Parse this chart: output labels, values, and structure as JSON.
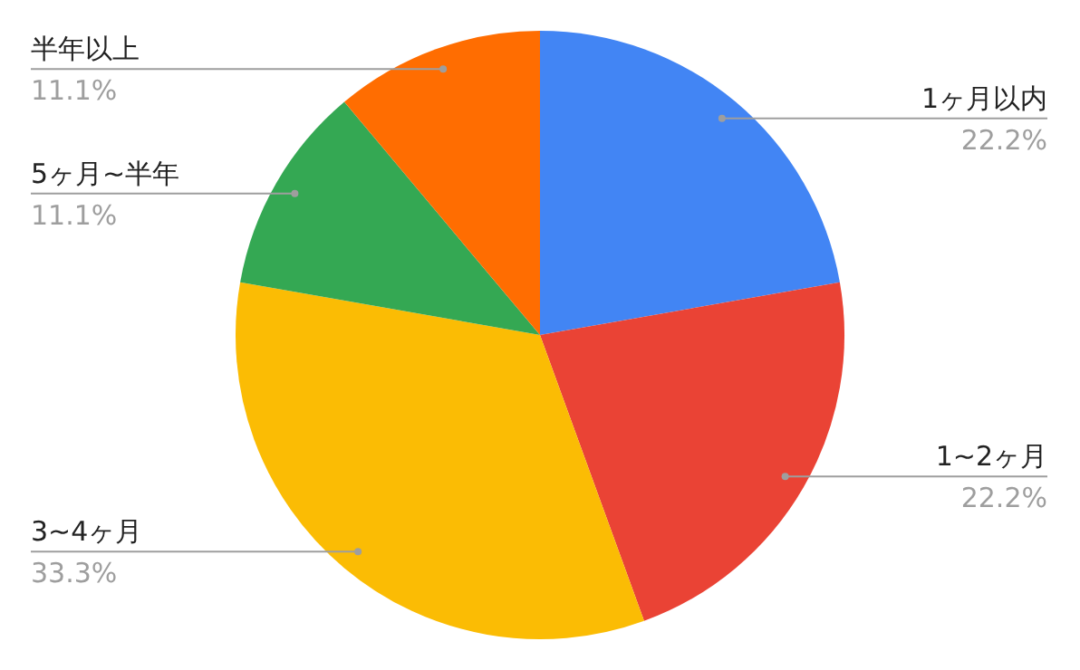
{
  "chart_data": {
    "type": "pie",
    "categories": [
      "1ヶ月以内",
      "1~2ヶ月",
      "3~4ヶ月",
      "5ヶ月~半年",
      "半年以上"
    ],
    "values": [
      22.2,
      22.2,
      33.3,
      11.1,
      11.1
    ],
    "colors": [
      "#4285f4",
      "#ea4335",
      "#fbbc04",
      "#34a853",
      "#ff6d01"
    ],
    "value_labels": [
      "22.2%",
      "22.2%",
      "33.3%",
      "11.1%",
      "11.1%"
    ],
    "legend": false
  }
}
